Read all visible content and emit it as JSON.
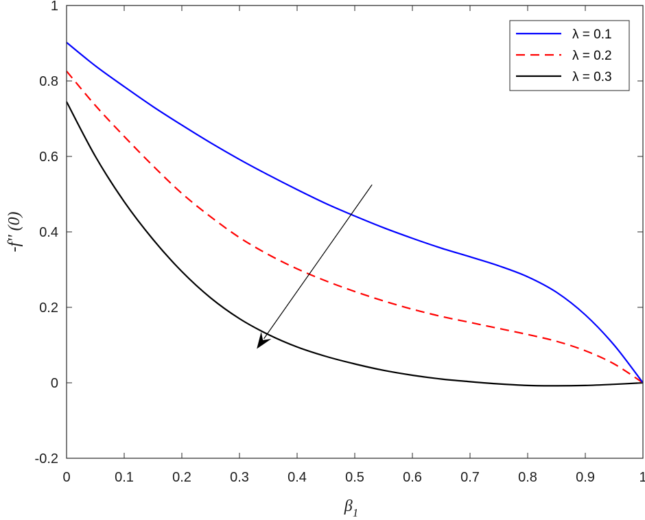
{
  "chart_data": {
    "type": "line",
    "title": "",
    "xlabel": "β",
    "xlabel_sub": "1",
    "ylabel": "-f'' (0)",
    "xlim": [
      0,
      1
    ],
    "ylim": [
      -0.2,
      1
    ],
    "xticks": [
      "0",
      "0.1",
      "0.2",
      "0.3",
      "0.4",
      "0.5",
      "0.6",
      "0.7",
      "0.8",
      "0.9",
      "1"
    ],
    "yticks": [
      "-0.2",
      "0",
      "0.2",
      "0.4",
      "0.6",
      "0.8",
      "1"
    ],
    "grid": false,
    "legend_position": "top-right",
    "annotation_arrow": {
      "from": [
        0.53,
        0.525
      ],
      "to": [
        0.33,
        0.09
      ]
    },
    "series": [
      {
        "name": "λ = 0.1",
        "color": "#0000ff",
        "dash": "solid",
        "x": [
          0,
          0.05,
          0.1,
          0.15,
          0.2,
          0.25,
          0.3,
          0.35,
          0.4,
          0.45,
          0.5,
          0.55,
          0.6,
          0.65,
          0.7,
          0.75,
          0.8,
          0.85,
          0.9,
          0.95,
          1.0
        ],
        "y": [
          0.902,
          0.84,
          0.785,
          0.732,
          0.683,
          0.636,
          0.592,
          0.551,
          0.512,
          0.475,
          0.442,
          0.411,
          0.383,
          0.357,
          0.334,
          0.31,
          0.281,
          0.24,
          0.18,
          0.1,
          0.0
        ]
      },
      {
        "name": "λ = 0.2",
        "color": "#ff0000",
        "dash": "dashed",
        "x": [
          0,
          0.05,
          0.1,
          0.15,
          0.2,
          0.25,
          0.3,
          0.35,
          0.4,
          0.45,
          0.5,
          0.55,
          0.6,
          0.65,
          0.7,
          0.75,
          0.8,
          0.85,
          0.9,
          0.95,
          1.0
        ],
        "y": [
          0.826,
          0.735,
          0.653,
          0.575,
          0.502,
          0.44,
          0.385,
          0.34,
          0.302,
          0.27,
          0.242,
          0.217,
          0.195,
          0.176,
          0.16,
          0.144,
          0.128,
          0.11,
          0.085,
          0.05,
          0.0
        ]
      },
      {
        "name": "λ = 0.3",
        "color": "#000000",
        "dash": "solid",
        "x": [
          0,
          0.05,
          0.1,
          0.15,
          0.2,
          0.25,
          0.3,
          0.35,
          0.4,
          0.45,
          0.5,
          0.55,
          0.6,
          0.65,
          0.7,
          0.75,
          0.8,
          0.85,
          0.9,
          0.95,
          1.0
        ],
        "y": [
          0.745,
          0.6,
          0.48,
          0.38,
          0.295,
          0.225,
          0.17,
          0.128,
          0.095,
          0.07,
          0.05,
          0.033,
          0.02,
          0.01,
          0.003,
          -0.003,
          -0.007,
          -0.008,
          -0.007,
          -0.004,
          0.0
        ]
      }
    ]
  }
}
